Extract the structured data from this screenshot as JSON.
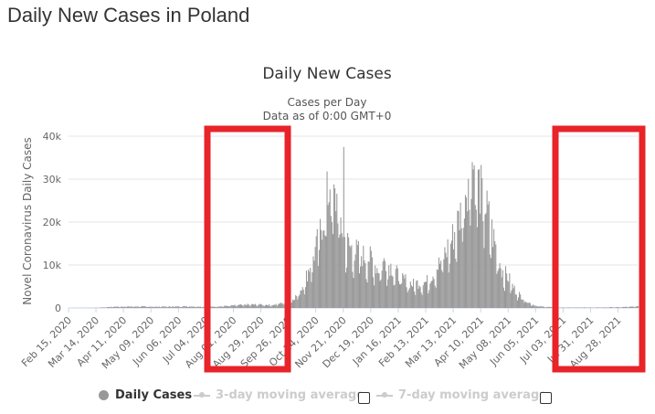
{
  "page": {
    "title": "Daily New Cases in Poland"
  },
  "chart_data": {
    "type": "bar",
    "title": "Daily New Cases",
    "subtitle_line1": "Cases per Day",
    "subtitle_line2": "Data as of 0:00 GMT+0",
    "ylabel": "Novel Coronavirus Daily Cases",
    "ylim": [
      0,
      40000
    ],
    "yticks": [
      0,
      10000,
      20000,
      30000,
      40000
    ],
    "ytick_labels": [
      "0",
      "10k",
      "20k",
      "30k",
      "40k"
    ],
    "x_start": "2020-02-15",
    "x_end": "2021-09-17",
    "xtick_labels": [
      "Feb 15, 2020",
      "Mar 14, 2020",
      "Apr 11, 2020",
      "May 09, 2020",
      "Jun 06, 2020",
      "Jul 04, 2020",
      "Aug 01, 2020",
      "Aug 29, 2020",
      "Sep 26, 2020",
      "Oct 24, 2020",
      "Nov 21, 2020",
      "Dec 19, 2020",
      "Jan 16, 2021",
      "Feb 13, 2021",
      "Mar 13, 2021",
      "Apr 10, 2021",
      "May 08, 2021",
      "Jun 05, 2021",
      "Jul 03, 2021",
      "Jul 31, 2021",
      "Aug 28, 2021"
    ],
    "grid": true,
    "bar_color": "#999999",
    "series": [
      {
        "name": "Daily Cases",
        "points": [
          [
            "2020-02-15",
            0
          ],
          [
            "2020-03-14",
            40
          ],
          [
            "2020-04-01",
            300
          ],
          [
            "2020-04-15",
            350
          ],
          [
            "2020-05-01",
            350
          ],
          [
            "2020-05-15",
            300
          ],
          [
            "2020-06-01",
            350
          ],
          [
            "2020-06-15",
            400
          ],
          [
            "2020-07-01",
            300
          ],
          [
            "2020-07-15",
            350
          ],
          [
            "2020-08-01",
            600
          ],
          [
            "2020-08-15",
            800
          ],
          [
            "2020-08-29",
            800
          ],
          [
            "2020-09-10",
            700
          ],
          [
            "2020-09-26",
            1500
          ],
          [
            "2020-10-05",
            3000
          ],
          [
            "2020-10-12",
            6000
          ],
          [
            "2020-10-17",
            9500
          ],
          [
            "2020-10-24",
            14000
          ],
          [
            "2020-10-31",
            21000
          ],
          [
            "2020-11-05",
            27000
          ],
          [
            "2020-11-10",
            25000
          ],
          [
            "2020-11-14",
            25500
          ],
          [
            "2020-11-18",
            20000
          ],
          [
            "2020-11-22",
            16000
          ],
          [
            "2020-11-28",
            14000
          ],
          [
            "2020-12-05",
            13000
          ],
          [
            "2020-12-12",
            12000
          ],
          [
            "2020-12-19",
            11500
          ],
          [
            "2020-12-26",
            9000
          ],
          [
            "2021-01-02",
            11000
          ],
          [
            "2021-01-09",
            9500
          ],
          [
            "2021-01-16",
            7500
          ],
          [
            "2021-01-23",
            6500
          ],
          [
            "2021-01-30",
            5500
          ],
          [
            "2021-02-06",
            6000
          ],
          [
            "2021-02-13",
            6000
          ],
          [
            "2021-02-20",
            8000
          ],
          [
            "2021-02-27",
            10500
          ],
          [
            "2021-03-06",
            13500
          ],
          [
            "2021-03-13",
            17000
          ],
          [
            "2021-03-20",
            22000
          ],
          [
            "2021-03-27",
            30000
          ],
          [
            "2021-04-01",
            34000
          ],
          [
            "2021-04-06",
            30000
          ],
          [
            "2021-04-10",
            27000
          ],
          [
            "2021-04-17",
            22000
          ],
          [
            "2021-04-24",
            15000
          ],
          [
            "2021-05-01",
            9000
          ],
          [
            "2021-05-08",
            7000
          ],
          [
            "2021-05-15",
            4000
          ],
          [
            "2021-05-22",
            2500
          ],
          [
            "2021-05-29",
            1200
          ],
          [
            "2021-06-05",
            500
          ],
          [
            "2021-06-12",
            300
          ],
          [
            "2021-07-01",
            100
          ],
          [
            "2021-08-01",
            120
          ],
          [
            "2021-08-28",
            180
          ],
          [
            "2021-09-17",
            350
          ]
        ],
        "spikes": [
          [
            "2020-11-21",
            37500
          ],
          [
            "2020-11-07",
            27600
          ]
        ]
      }
    ],
    "legend_items": [
      {
        "label": "Daily Cases",
        "color": "#999999",
        "active": true
      },
      {
        "label": "3-day moving average",
        "color": "#cccccc",
        "active": false
      },
      {
        "label": "7-day moving average",
        "color": "#cccccc",
        "active": false
      }
    ],
    "highlight_color": "#e8232a"
  }
}
